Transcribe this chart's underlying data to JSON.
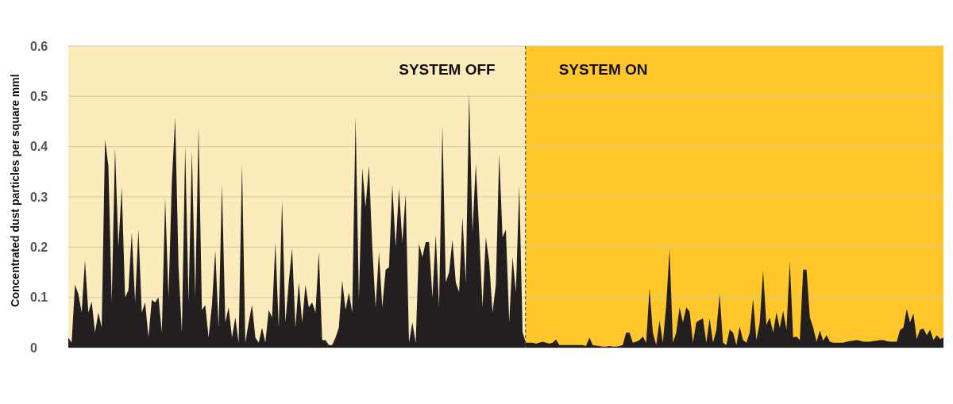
{
  "chart_data": {
    "type": "area",
    "ylabel": "Concentrated dust particles per square mml",
    "annotations": [
      "SYSTEM OFF",
      "SYSTEM ON"
    ],
    "categories": [
      null,
      null,
      null,
      null,
      null,
      null,
      null,
      null,
      null,
      null,
      null,
      null,
      null,
      null,
      null,
      null,
      null,
      null,
      null,
      null,
      null,
      null,
      null,
      null,
      null,
      null,
      null,
      null,
      null,
      null,
      null,
      null,
      null,
      null,
      null,
      null,
      null,
      null,
      null,
      null,
      null,
      null,
      null,
      null,
      null,
      null,
      null,
      null,
      null,
      null,
      null,
      null,
      null,
      null,
      null,
      null,
      null,
      null,
      null,
      null,
      null,
      null,
      null,
      null,
      null,
      null,
      null,
      null,
      null,
      null,
      null,
      null,
      null,
      null,
      null,
      null,
      null,
      null,
      null,
      null,
      null,
      null,
      null,
      null,
      null,
      null,
      null,
      null,
      null,
      null,
      null,
      null,
      null,
      null,
      null,
      null,
      null,
      null,
      null,
      null,
      null,
      null,
      null,
      null,
      null,
      null,
      null,
      null,
      null,
      null,
      null,
      null,
      null,
      null,
      null,
      null,
      null,
      null,
      null,
      null,
      null,
      null,
      null,
      null,
      null,
      null,
      null,
      null,
      null,
      null,
      null,
      null,
      null,
      null,
      null,
      null,
      null,
      null,
      null,
      null,
      null,
      null,
      null,
      null,
      null,
      null,
      null,
      null,
      null,
      null,
      null,
      null,
      null,
      null,
      null,
      null,
      null,
      null,
      null,
      null,
      null,
      null,
      null,
      null,
      null,
      null,
      null,
      null,
      null,
      null,
      null,
      null,
      null,
      null,
      null,
      null,
      null,
      null,
      null,
      null,
      null,
      null,
      null,
      null,
      null,
      null,
      null,
      null,
      null,
      null,
      null,
      null,
      null,
      null,
      null,
      null,
      null,
      null,
      null,
      null,
      null,
      null,
      null,
      null,
      null,
      null,
      null,
      null,
      null,
      null,
      null,
      null,
      null,
      null,
      null,
      null,
      null,
      null,
      null,
      null,
      null,
      null,
      null,
      null,
      null,
      null,
      null,
      null,
      null,
      null,
      null,
      null,
      null,
      null,
      null,
      null,
      null,
      null,
      null,
      null,
      null,
      null,
      null,
      null,
      null,
      null,
      null,
      null,
      null,
      null,
      null,
      null,
      null,
      null,
      null,
      null,
      null,
      null,
      null,
      null,
      null,
      null,
      null
    ],
    "series": [
      {
        "color": "#231f20",
        "values": [
          0.02,
          0.01,
          0.125,
          0.107,
          0.07,
          0.174,
          0.07,
          0.092,
          0.03,
          0.07,
          0.04,
          0.414,
          0.362,
          0.09,
          0.397,
          0.2,
          0.319,
          0.1,
          0.114,
          0.229,
          0.09,
          0.236,
          0.07,
          0.09,
          0.02,
          0.095,
          0.09,
          0.1,
          0.03,
          0.297,
          0.1,
          0.33,
          0.458,
          0.16,
          0.03,
          0.401,
          0.09,
          0.392,
          0.1,
          0.437,
          0.075,
          0.085,
          0.02,
          0.085,
          0.194,
          0.04,
          0.325,
          0.05,
          0.08,
          0.02,
          0.06,
          0.01,
          0.365,
          0.01,
          0.05,
          0.085,
          0.02,
          0.01,
          0.04,
          0.01,
          0.075,
          0.06,
          0.209,
          0.04,
          0.293,
          0.05,
          0.13,
          0.198,
          0.04,
          0.13,
          0.05,
          0.125,
          0.08,
          0.09,
          0.07,
          0.19,
          0.015,
          0.015,
          0.005,
          0.005,
          0.02,
          0.04,
          0.134,
          0.075,
          0.11,
          0.07,
          0.46,
          0.095,
          0.357,
          0.28,
          0.362,
          0.2,
          0.08,
          0.19,
          0.08,
          0.155,
          0.16,
          0.323,
          0.2,
          0.316,
          0.21,
          0.305,
          0.01,
          0.05,
          0.01,
          0.207,
          0.18,
          0.21,
          0.21,
          0.1,
          0.225,
          0.08,
          0.443,
          0.13,
          0.15,
          0.215,
          0.13,
          0.11,
          0.26,
          0.13,
          0.507,
          0.23,
          0.366,
          0.23,
          0.08,
          0.22,
          0.17,
          0.07,
          0.125,
          0.385,
          0.22,
          0.235,
          0.05,
          0.18,
          0.11,
          0.323,
          0.03,
          0.01,
          0.01,
          0.01,
          0.008,
          0.01,
          0.012,
          0.01,
          0.008,
          0.01,
          0.016,
          0.005,
          0.005,
          0.005,
          0.005,
          0.005,
          0.005,
          0.005,
          0.005,
          0.003,
          0.02,
          0.005,
          0.004,
          0.003,
          0.002,
          0.002,
          0.003,
          0.002,
          0.002,
          0.003,
          0.005,
          0.03,
          0.03,
          0.01,
          0.012,
          0.015,
          0.022,
          0.01,
          0.118,
          0.03,
          0.005,
          0.054,
          0.01,
          0.085,
          0.196,
          0.01,
          0.03,
          0.08,
          0.05,
          0.08,
          0.072,
          0.01,
          0.05,
          0.055,
          0.058,
          0.01,
          0.058,
          0.01,
          0.035,
          0.106,
          0.01,
          0.005,
          0.036,
          0.03,
          0.005,
          0.042,
          0.015,
          0.01,
          0.03,
          0.097,
          0.015,
          0.05,
          0.153,
          0.045,
          0.06,
          0.03,
          0.07,
          0.04,
          0.073,
          0.035,
          0.172,
          0.02,
          0.022,
          0.015,
          0.155,
          0.155,
          0.06,
          0.04,
          0.012,
          0.034,
          0.014,
          0.025,
          0.012,
          0.01,
          0.01,
          0.01,
          0.01,
          0.012,
          0.013,
          0.014,
          0.015,
          0.014,
          0.012,
          0.012,
          0.012,
          0.013,
          0.014,
          0.015,
          0.015,
          0.013,
          0.012,
          0.012,
          0.012,
          0.035,
          0.04,
          0.077,
          0.05,
          0.068,
          0.017,
          0.036,
          0.038,
          0.025,
          0.036,
          0.015,
          0.025,
          0.017,
          0.02
        ]
      }
    ],
    "ylim": [
      0,
      0.6
    ],
    "yticks": [
      0,
      0.1,
      0.2,
      0.3,
      0.4,
      0.5,
      0.6
    ],
    "tick_labels": "y",
    "grid": "y"
  }
}
